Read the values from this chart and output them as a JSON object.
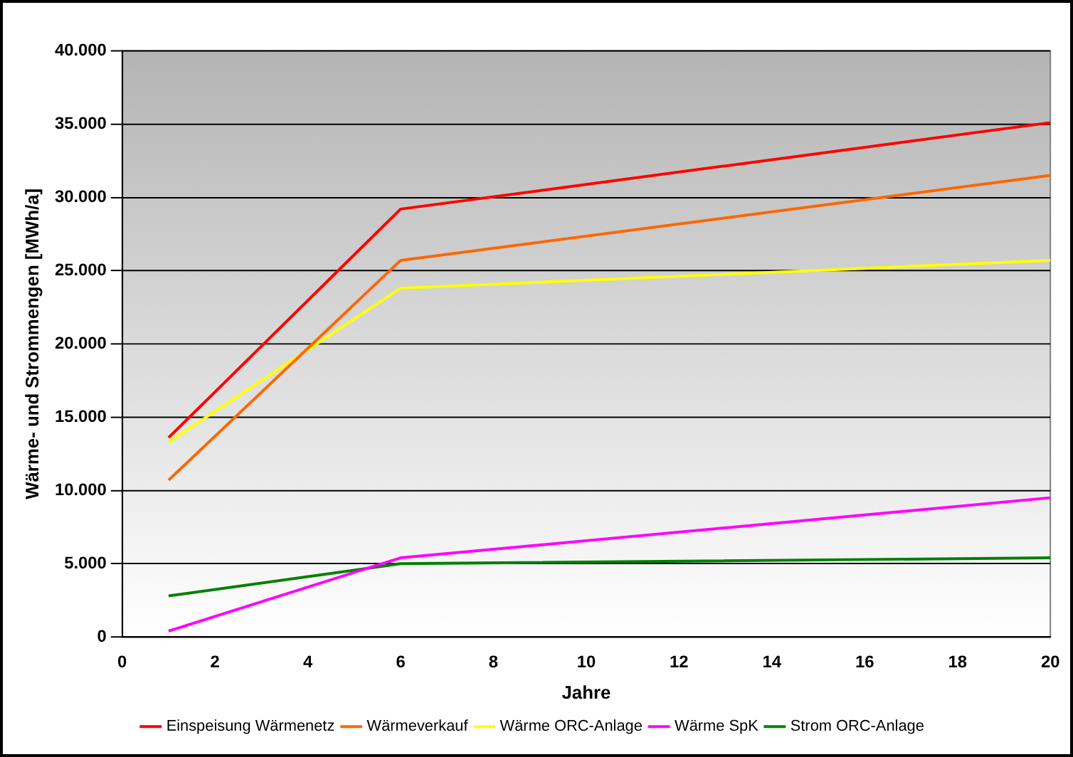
{
  "chart_data": {
    "type": "line",
    "xlabel": "Jahre",
    "ylabel": "Wärme- und Strommengen [MWh/a]",
    "x": [
      1,
      6,
      20
    ],
    "series": [
      {
        "name": "Einspeisung Wärmenetz",
        "color": "#ff0000",
        "values": [
          13600,
          29200,
          35100
        ]
      },
      {
        "name": "Wärmeverkauf",
        "color": "#ff6600",
        "values": [
          10700,
          25700,
          31500
        ]
      },
      {
        "name": "Wärme ORC-Anlage",
        "color": "#ffff00",
        "values": [
          13300,
          23800,
          25700
        ]
      },
      {
        "name": "Wärme SpK",
        "color": "#ff00ff",
        "values": [
          400,
          5400,
          9500
        ]
      },
      {
        "name": "Strom ORC-Anlage",
        "color": "#008000",
        "values": [
          2800,
          5000,
          5400
        ]
      }
    ],
    "xlim": [
      0,
      20
    ],
    "xticks": [
      0,
      2,
      4,
      6,
      8,
      10,
      12,
      14,
      16,
      18,
      20
    ],
    "ylim": [
      0,
      40000
    ],
    "yticks": [
      {
        "value": 0,
        "label": "0"
      },
      {
        "value": 5000,
        "label": "5.000"
      },
      {
        "value": 10000,
        "label": "10.000"
      },
      {
        "value": 15000,
        "label": "15.000"
      },
      {
        "value": 20000,
        "label": "20.000"
      },
      {
        "value": 25000,
        "label": "25.000"
      },
      {
        "value": 30000,
        "label": "30.000"
      },
      {
        "value": 35000,
        "label": "35.000"
      },
      {
        "value": 40000,
        "label": "40.000"
      }
    ],
    "grid": "y",
    "legend": "bottom",
    "marker": "none",
    "line_style": "solid"
  }
}
